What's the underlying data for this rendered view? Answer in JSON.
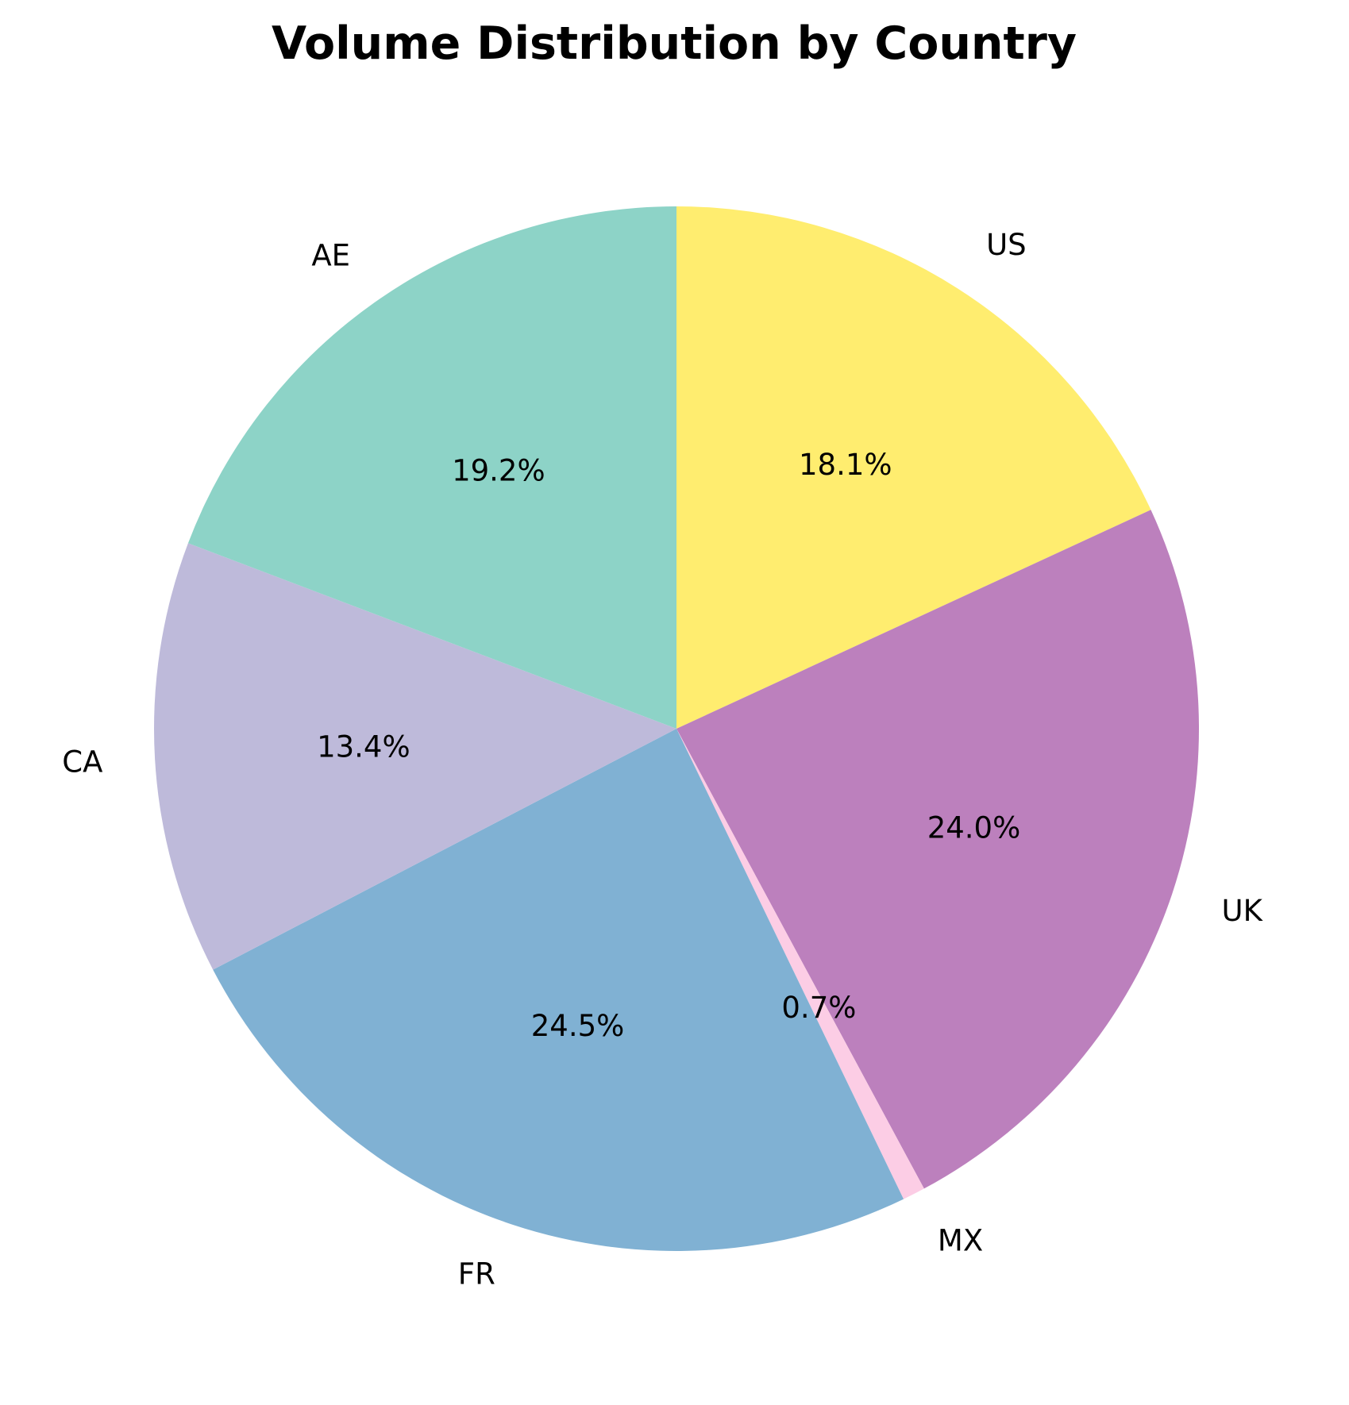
{
  "chart_data": {
    "type": "pie",
    "title": "Volume Distribution by Country",
    "categories": [
      "US",
      "UK",
      "MX",
      "FR",
      "CA",
      "AE"
    ],
    "values": [
      18.1,
      24.0,
      0.7,
      24.5,
      13.4,
      19.2
    ],
    "value_labels": [
      "18.1%",
      "24.0%",
      "0.7%",
      "24.5%",
      "13.4%",
      "19.2%"
    ],
    "colors": [
      "#FFED6F",
      "#BC80BD",
      "#FCCDE5",
      "#80B1D3",
      "#BEBADA",
      "#8DD3C7"
    ],
    "start_angle": "top",
    "direction": "clockwise",
    "legend": "none"
  }
}
